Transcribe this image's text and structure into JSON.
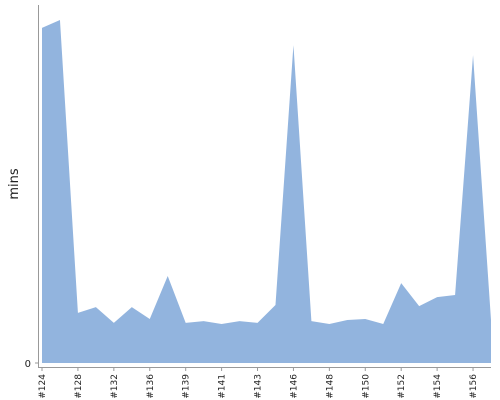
{
  "chart_data": {
    "type": "area",
    "y_label": "mins",
    "color": "#92b4de",
    "categories": [
      "#124",
      null,
      "#128",
      null,
      "#132",
      null,
      "#136",
      null,
      "#139",
      null,
      "#141",
      null,
      "#143",
      null,
      "#146",
      null,
      "#148",
      null,
      "#150",
      null,
      "#152",
      null,
      "#154",
      null,
      "#156",
      null
    ],
    "values": [
      93.6,
      95.8,
      14,
      15.6,
      11.2,
      15.6,
      12.3,
      24.3,
      11.2,
      11.7,
      10.9,
      11.7,
      11.2,
      16.2,
      88.8,
      11.7,
      10.9,
      12,
      12.3,
      10.9,
      22.3,
      15.9,
      18.4,
      19,
      86,
      12
    ],
    "ylim": [
      0,
      100
    ],
    "yticks": [
      0
    ]
  }
}
